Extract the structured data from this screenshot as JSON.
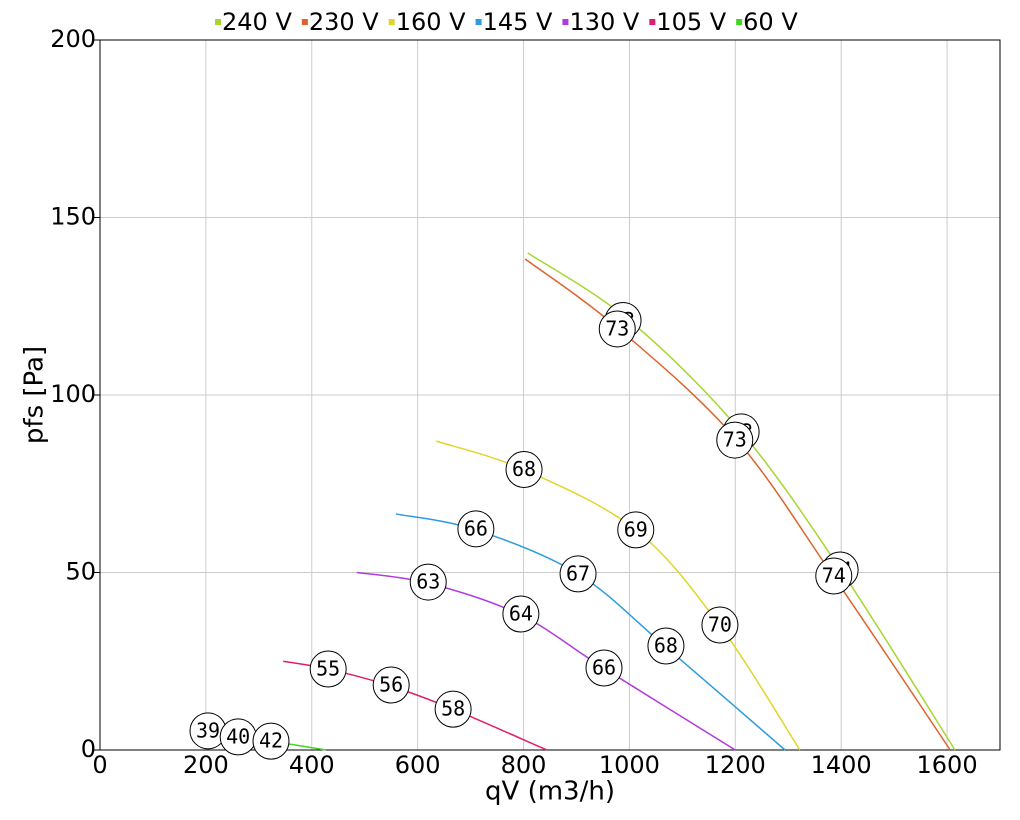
{
  "chart_data": {
    "type": "line",
    "xlabel": "qV (m3/h)",
    "ylabel": "pfs [Pa]",
    "xlim": [
      0,
      1700
    ],
    "ylim": [
      0,
      200
    ],
    "xticks": [
      0,
      200,
      400,
      600,
      800,
      1000,
      1200,
      1400,
      1600
    ],
    "yticks": [
      0,
      50,
      100,
      150,
      200
    ],
    "grid": true,
    "legend": "top",
    "series": [
      {
        "name": "240 V",
        "color": "#a8d630",
        "x": [
          808,
          1000,
          1209,
          1398,
          1615
        ],
        "y": [
          140,
          121,
          90,
          51,
          0
        ],
        "labels": [
          {
            "x": 988,
            "y": 121,
            "text": "73"
          },
          {
            "x": 1211,
            "y": 89.6,
            "text": "73"
          },
          {
            "x": 1398,
            "y": 50.7,
            "text": "74"
          }
        ]
      },
      {
        "name": "230 V",
        "color": "#e0622a",
        "x": [
          803,
          977,
          1199,
          1385,
          1606
        ],
        "y": [
          138.3,
          119,
          88,
          49,
          0
        ],
        "labels": [
          {
            "x": 977,
            "y": 118.6,
            "text": "73"
          },
          {
            "x": 1199,
            "y": 87.3,
            "text": "73"
          },
          {
            "x": 1386,
            "y": 49,
            "text": "74"
          }
        ]
      },
      {
        "name": "160 V",
        "color": "#e2d42a",
        "x": [
          635,
          800,
          1012,
          1171,
          1322
        ],
        "y": [
          87,
          79,
          62,
          35,
          0
        ],
        "labels": [
          {
            "x": 801,
            "y": 79,
            "text": "68"
          },
          {
            "x": 1012,
            "y": 62,
            "text": "69"
          },
          {
            "x": 1171,
            "y": 35.2,
            "text": "70"
          }
        ]
      },
      {
        "name": "145 V",
        "color": "#2c9ce0",
        "x": [
          559,
          710,
          903,
          1069,
          1294
        ],
        "y": [
          66.5,
          62,
          49.6,
          29,
          0
        ],
        "labels": [
          {
            "x": 710,
            "y": 62.3,
            "text": "66"
          },
          {
            "x": 903,
            "y": 49.6,
            "text": "67"
          },
          {
            "x": 1069,
            "y": 29.3,
            "text": "68"
          }
        ]
      },
      {
        "name": "130 V",
        "color": "#b03ae0",
        "x": [
          485,
          620,
          795,
          952,
          1200
        ],
        "y": [
          50,
          47,
          38,
          23,
          0
        ],
        "labels": [
          {
            "x": 620,
            "y": 47.3,
            "text": "63"
          },
          {
            "x": 795,
            "y": 38.3,
            "text": "64"
          },
          {
            "x": 952,
            "y": 23.1,
            "text": "66"
          }
        ]
      },
      {
        "name": "105 V",
        "color": "#e0206a",
        "x": [
          346,
          431,
          550,
          667,
          844
        ],
        "y": [
          25,
          22.8,
          18,
          11.5,
          0
        ],
        "labels": [
          {
            "x": 431,
            "y": 22.8,
            "text": "55"
          },
          {
            "x": 550,
            "y": 18.3,
            "text": "56"
          },
          {
            "x": 667,
            "y": 11.5,
            "text": "58"
          }
        ]
      },
      {
        "name": "60 V",
        "color": "#44d424",
        "x": [
          204,
          261,
          323,
          427
        ],
        "y": [
          5.4,
          3.7,
          2.5,
          0
        ],
        "labels": [
          {
            "x": 204,
            "y": 5.4,
            "text": "39"
          },
          {
            "x": 261,
            "y": 3.7,
            "text": "40"
          },
          {
            "x": 323,
            "y": 2.5,
            "text": "42"
          }
        ]
      }
    ]
  }
}
